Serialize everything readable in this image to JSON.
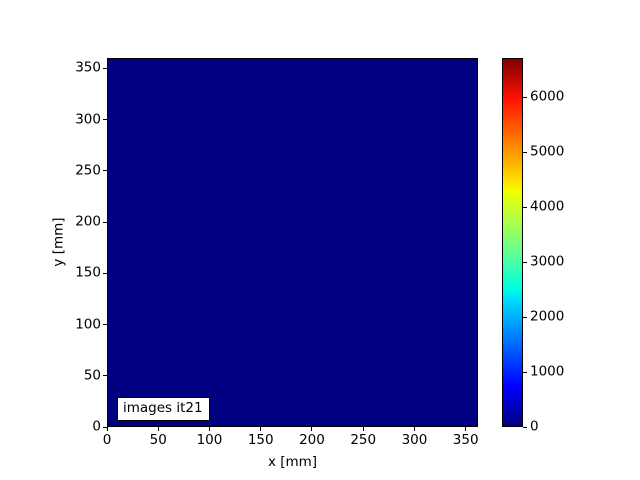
{
  "figure": {
    "background_color": "#ffffff",
    "title": ""
  },
  "chart_data": {
    "type": "heatmap",
    "title": "",
    "xlabel": "x [mm]",
    "ylabel": "y [mm]",
    "xlim": [
      0,
      360
    ],
    "ylim": [
      0,
      360
    ],
    "x_ticks": [
      "0",
      "50",
      "100",
      "150",
      "200",
      "250",
      "300",
      "350"
    ],
    "y_ticks": [
      "0",
      "50",
      "100",
      "150",
      "200",
      "250",
      "300",
      "350"
    ],
    "grid": false,
    "annotation": "images it21",
    "heatmap_uniform_value": 0,
    "heatmap_fill_color": "#000080",
    "colormap": "jet",
    "colorbar": {
      "position": "right",
      "vmin": 0,
      "vmax": 6710,
      "tick_labels": [
        "0",
        "1000",
        "2000",
        "3000",
        "4000",
        "5000",
        "6000"
      ],
      "gradient_stops": [
        "#000080 0%",
        "#0000ff 11%",
        "#00d8ff 34%",
        "#00ffe0 37.5%",
        "#7cff7c 50%",
        "#f0ff00 64%",
        "#ffe600 66%",
        "#ff1300 89%",
        "#800000 100%"
      ]
    }
  }
}
